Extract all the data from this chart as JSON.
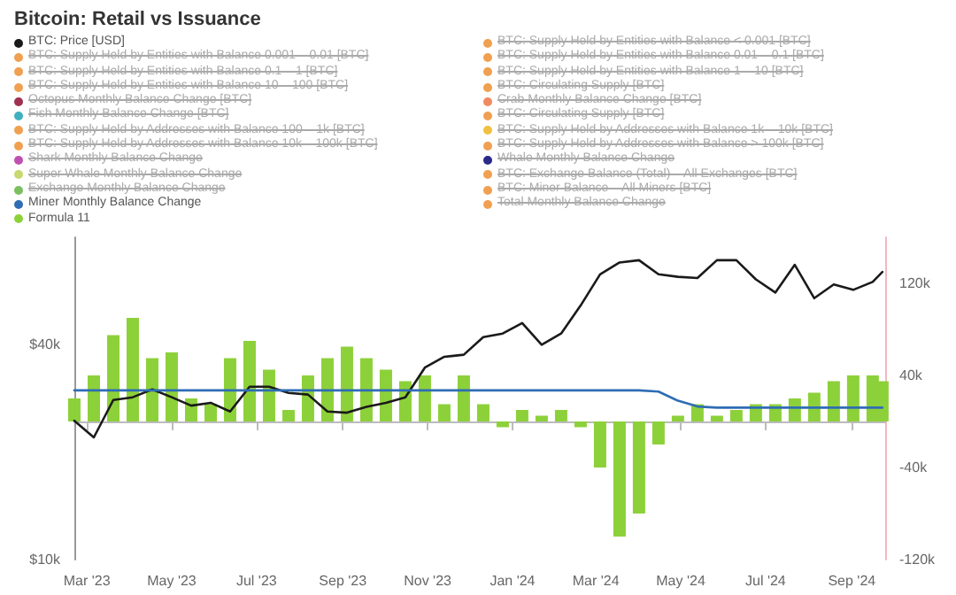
{
  "chart_data": {
    "type": "line",
    "title": "Bitcoin: Retail vs Issuance",
    "legend": "top",
    "marker": "none",
    "line_style": "solid",
    "grid": false,
    "x": [
      "2023-02-20",
      "2023-03-06",
      "2023-03-20",
      "2023-04-03",
      "2023-04-17",
      "2023-05-01",
      "2023-05-15",
      "2023-05-29",
      "2023-06-12",
      "2023-06-26",
      "2023-07-10",
      "2023-07-24",
      "2023-08-07",
      "2023-08-21",
      "2023-09-04",
      "2023-09-18",
      "2023-10-02",
      "2023-10-16",
      "2023-10-30",
      "2023-11-13",
      "2023-11-27",
      "2023-12-11",
      "2023-12-25",
      "2024-01-08",
      "2024-01-22",
      "2024-02-05",
      "2024-02-19",
      "2024-03-04",
      "2024-03-18",
      "2024-04-01",
      "2024-04-15",
      "2024-04-29",
      "2024-05-13",
      "2024-05-27",
      "2024-06-10",
      "2024-06-24",
      "2024-07-08",
      "2024-07-22",
      "2024-08-05",
      "2024-08-19",
      "2024-09-02",
      "2024-09-16",
      "2024-09-23"
    ],
    "xlim": [
      "2023-02-20",
      "2024-09-25"
    ],
    "xticks": [
      {
        "value": "2023-03-01",
        "label": "Mar '23"
      },
      {
        "value": "2023-05-01",
        "label": "May '23"
      },
      {
        "value": "2023-07-01",
        "label": "Jul '23"
      },
      {
        "value": "2023-09-01",
        "label": "Sep '23"
      },
      {
        "value": "2023-11-01",
        "label": "Nov '23"
      },
      {
        "value": "2024-01-01",
        "label": "Jan '24"
      },
      {
        "value": "2024-03-01",
        "label": "Mar '24"
      },
      {
        "value": "2024-05-01",
        "label": "May '24"
      },
      {
        "value": "2024-07-01",
        "label": "Jul '24"
      },
      {
        "value": "2024-09-01",
        "label": "Sep '24"
      }
    ],
    "log": "y",
    "ylim": [
      10000,
      80000
    ],
    "yticks": [
      {
        "value": 10000,
        "label": "$10k"
      },
      {
        "value": 40000,
        "label": "$40k"
      }
    ],
    "y2lim": [
      -120000,
      160000
    ],
    "y2ticks": [
      {
        "value": -120000,
        "label": "-120k"
      },
      {
        "value": -40000,
        "label": "-40k"
      },
      {
        "value": 40000,
        "label": "40k"
      },
      {
        "value": 120000,
        "label": "120k"
      }
    ],
    "series": [
      {
        "name": "BTC: Price [USD]",
        "color": "#1a1a1a",
        "values": [
          24500,
          22000,
          28000,
          28500,
          30000,
          28500,
          27000,
          27500,
          26000,
          30500,
          30500,
          29300,
          29000,
          26000,
          25800,
          26800,
          27500,
          28500,
          34500,
          37000,
          37500,
          42000,
          43000,
          46000,
          40000,
          43000,
          51500,
          63000,
          68000,
          69000,
          63000,
          62000,
          61500,
          69000,
          69000,
          61000,
          56000,
          67000,
          54000,
          59000,
          57000,
          60000,
          64000
        ]
      },
      {
        "name": "BTC: Supply Held by Entities with Balance < 0.001 [BTC]",
        "color": "#f0a050",
        "values": [
          null,
          null,
          null,
          null,
          null,
          null,
          null,
          null,
          null,
          null,
          null,
          null,
          null,
          null,
          null,
          null,
          null,
          null,
          null,
          null,
          null,
          null,
          null,
          null,
          null,
          null,
          null,
          null,
          null,
          null,
          null,
          null,
          null,
          null,
          null,
          null,
          null,
          null,
          null,
          null,
          null,
          null,
          null
        ]
      },
      {
        "name": "BTC: Supply Held by Entities with Balance 0.001 – 0.01 [BTC]",
        "color": "#f0a050",
        "values": [
          null,
          null,
          null,
          null,
          null,
          null,
          null,
          null,
          null,
          null,
          null,
          null,
          null,
          null,
          null,
          null,
          null,
          null,
          null,
          null,
          null,
          null,
          null,
          null,
          null,
          null,
          null,
          null,
          null,
          null,
          null,
          null,
          null,
          null,
          null,
          null,
          null,
          null,
          null,
          null,
          null,
          null,
          null
        ]
      },
      {
        "name": "BTC: Supply Held by Entities with Balance 0.01 – 0.1 [BTC]",
        "color": "#f0a050",
        "values": [
          null,
          null,
          null,
          null,
          null,
          null,
          null,
          null,
          null,
          null,
          null,
          null,
          null,
          null,
          null,
          null,
          null,
          null,
          null,
          null,
          null,
          null,
          null,
          null,
          null,
          null,
          null,
          null,
          null,
          null,
          null,
          null,
          null,
          null,
          null,
          null,
          null,
          null,
          null,
          null,
          null,
          null,
          null
        ]
      },
      {
        "name": "BTC: Supply Held by Entities with Balance 0.1 – 1 [BTC]",
        "color": "#f0a050",
        "values": [
          null,
          null,
          null,
          null,
          null,
          null,
          null,
          null,
          null,
          null,
          null,
          null,
          null,
          null,
          null,
          null,
          null,
          null,
          null,
          null,
          null,
          null,
          null,
          null,
          null,
          null,
          null,
          null,
          null,
          null,
          null,
          null,
          null,
          null,
          null,
          null,
          null,
          null,
          null,
          null,
          null,
          null,
          null
        ]
      },
      {
        "name": "BTC: Supply Held by Entities with Balance 1 – 10 [BTC]",
        "color": "#f0a050",
        "values": [
          null,
          null,
          null,
          null,
          null,
          null,
          null,
          null,
          null,
          null,
          null,
          null,
          null,
          null,
          null,
          null,
          null,
          null,
          null,
          null,
          null,
          null,
          null,
          null,
          null,
          null,
          null,
          null,
          null,
          null,
          null,
          null,
          null,
          null,
          null,
          null,
          null,
          null,
          null,
          null,
          null,
          null,
          null
        ]
      },
      {
        "name": "BTC: Supply Held by Entities with Balance 10 – 100 [BTC]",
        "color": "#f0a050",
        "values": [
          null,
          null,
          null,
          null,
          null,
          null,
          null,
          null,
          null,
          null,
          null,
          null,
          null,
          null,
          null,
          null,
          null,
          null,
          null,
          null,
          null,
          null,
          null,
          null,
          null,
          null,
          null,
          null,
          null,
          null,
          null,
          null,
          null,
          null,
          null,
          null,
          null,
          null,
          null,
          null,
          null,
          null,
          null
        ]
      },
      {
        "name": "BTC: Circulating Supply [BTC]",
        "color": "#f0a050",
        "values": [
          null,
          null,
          null,
          null,
          null,
          null,
          null,
          null,
          null,
          null,
          null,
          null,
          null,
          null,
          null,
          null,
          null,
          null,
          null,
          null,
          null,
          null,
          null,
          null,
          null,
          null,
          null,
          null,
          null,
          null,
          null,
          null,
          null,
          null,
          null,
          null,
          null,
          null,
          null,
          null,
          null,
          null,
          null
        ]
      },
      {
        "name": "Octopus Monthly Balance Change [BTC]",
        "color": "#a03050",
        "values": [
          null,
          null,
          null,
          null,
          null,
          null,
          null,
          null,
          null,
          null,
          null,
          null,
          null,
          null,
          null,
          null,
          null,
          null,
          null,
          null,
          null,
          null,
          null,
          null,
          null,
          null,
          null,
          null,
          null,
          null,
          null,
          null,
          null,
          null,
          null,
          null,
          null,
          null,
          null,
          null,
          null,
          null,
          null
        ]
      },
      {
        "name": "Crab Monthly Balance Change [BTC]",
        "color": "#f08a60",
        "values": [
          null,
          null,
          null,
          null,
          null,
          null,
          null,
          null,
          null,
          null,
          null,
          null,
          null,
          null,
          null,
          null,
          null,
          null,
          null,
          null,
          null,
          null,
          null,
          null,
          null,
          null,
          null,
          null,
          null,
          null,
          null,
          null,
          null,
          null,
          null,
          null,
          null,
          null,
          null,
          null,
          null,
          null,
          null
        ]
      },
      {
        "name": "Fish Monthly Balance Change [BTC]",
        "color": "#40b0c0",
        "values": [
          null,
          null,
          null,
          null,
          null,
          null,
          null,
          null,
          null,
          null,
          null,
          null,
          null,
          null,
          null,
          null,
          null,
          null,
          null,
          null,
          null,
          null,
          null,
          null,
          null,
          null,
          null,
          null,
          null,
          null,
          null,
          null,
          null,
          null,
          null,
          null,
          null,
          null,
          null,
          null,
          null,
          null,
          null
        ]
      },
      {
        "name": "BTC: Circulating Supply [BTC]",
        "color": "#f0a050",
        "values": [
          null,
          null,
          null,
          null,
          null,
          null,
          null,
          null,
          null,
          null,
          null,
          null,
          null,
          null,
          null,
          null,
          null,
          null,
          null,
          null,
          null,
          null,
          null,
          null,
          null,
          null,
          null,
          null,
          null,
          null,
          null,
          null,
          null,
          null,
          null,
          null,
          null,
          null,
          null,
          null,
          null,
          null,
          null
        ]
      },
      {
        "name": "BTC: Supply Held by Addresses with Balance 100 – 1k [BTC]",
        "color": "#f0a050",
        "values": [
          null,
          null,
          null,
          null,
          null,
          null,
          null,
          null,
          null,
          null,
          null,
          null,
          null,
          null,
          null,
          null,
          null,
          null,
          null,
          null,
          null,
          null,
          null,
          null,
          null,
          null,
          null,
          null,
          null,
          null,
          null,
          null,
          null,
          null,
          null,
          null,
          null,
          null,
          null,
          null,
          null,
          null,
          null
        ]
      },
      {
        "name": "BTC: Supply Held by Addresses with Balance 1k – 10k [BTC]",
        "color": "#f0c040",
        "values": [
          null,
          null,
          null,
          null,
          null,
          null,
          null,
          null,
          null,
          null,
          null,
          null,
          null,
          null,
          null,
          null,
          null,
          null,
          null,
          null,
          null,
          null,
          null,
          null,
          null,
          null,
          null,
          null,
          null,
          null,
          null,
          null,
          null,
          null,
          null,
          null,
          null,
          null,
          null,
          null,
          null,
          null,
          null
        ]
      },
      {
        "name": "BTC: Supply Held by Addresses with Balance 10k – 100k [BTC]",
        "color": "#f0a050",
        "values": [
          null,
          null,
          null,
          null,
          null,
          null,
          null,
          null,
          null,
          null,
          null,
          null,
          null,
          null,
          null,
          null,
          null,
          null,
          null,
          null,
          null,
          null,
          null,
          null,
          null,
          null,
          null,
          null,
          null,
          null,
          null,
          null,
          null,
          null,
          null,
          null,
          null,
          null,
          null,
          null,
          null,
          null,
          null
        ]
      },
      {
        "name": "BTC: Supply Held by Addresses with Balance > 100k [BTC]",
        "color": "#f0a050",
        "values": [
          null,
          null,
          null,
          null,
          null,
          null,
          null,
          null,
          null,
          null,
          null,
          null,
          null,
          null,
          null,
          null,
          null,
          null,
          null,
          null,
          null,
          null,
          null,
          null,
          null,
          null,
          null,
          null,
          null,
          null,
          null,
          null,
          null,
          null,
          null,
          null,
          null,
          null,
          null,
          null,
          null,
          null,
          null
        ]
      },
      {
        "name": "Shark Monthly Balance Change",
        "color": "#c050b0",
        "values": [
          null,
          null,
          null,
          null,
          null,
          null,
          null,
          null,
          null,
          null,
          null,
          null,
          null,
          null,
          null,
          null,
          null,
          null,
          null,
          null,
          null,
          null,
          null,
          null,
          null,
          null,
          null,
          null,
          null,
          null,
          null,
          null,
          null,
          null,
          null,
          null,
          null,
          null,
          null,
          null,
          null,
          null,
          null
        ]
      },
      {
        "name": "Whale Monthly Balance Change",
        "color": "#2a2a8a",
        "values": [
          null,
          null,
          null,
          null,
          null,
          null,
          null,
          null,
          null,
          null,
          null,
          null,
          null,
          null,
          null,
          null,
          null,
          null,
          null,
          null,
          null,
          null,
          null,
          null,
          null,
          null,
          null,
          null,
          null,
          null,
          null,
          null,
          null,
          null,
          null,
          null,
          null,
          null,
          null,
          null,
          null,
          null,
          null
        ]
      },
      {
        "name": "Super Whale Monthly Balance Change",
        "color": "#c8d870",
        "values": [
          null,
          null,
          null,
          null,
          null,
          null,
          null,
          null,
          null,
          null,
          null,
          null,
          null,
          null,
          null,
          null,
          null,
          null,
          null,
          null,
          null,
          null,
          null,
          null,
          null,
          null,
          null,
          null,
          null,
          null,
          null,
          null,
          null,
          null,
          null,
          null,
          null,
          null,
          null,
          null,
          null,
          null,
          null
        ]
      },
      {
        "name": "BTC: Exchange Balance (Total) – All Exchanges [BTC]",
        "color": "#f0a050",
        "values": [
          null,
          null,
          null,
          null,
          null,
          null,
          null,
          null,
          null,
          null,
          null,
          null,
          null,
          null,
          null,
          null,
          null,
          null,
          null,
          null,
          null,
          null,
          null,
          null,
          null,
          null,
          null,
          null,
          null,
          null,
          null,
          null,
          null,
          null,
          null,
          null,
          null,
          null,
          null,
          null,
          null,
          null,
          null
        ]
      },
      {
        "name": "Exchange Monthly Balance Change",
        "color": "#7ac060",
        "values": [
          null,
          null,
          null,
          null,
          null,
          null,
          null,
          null,
          null,
          null,
          null,
          null,
          null,
          null,
          null,
          null,
          null,
          null,
          null,
          null,
          null,
          null,
          null,
          null,
          null,
          null,
          null,
          null,
          null,
          null,
          null,
          null,
          null,
          null,
          null,
          null,
          null,
          null,
          null,
          null,
          null,
          null,
          null
        ]
      },
      {
        "name": "BTC: Miner Balance – All Miners [BTC]",
        "color": "#f0a050",
        "values": [
          null,
          null,
          null,
          null,
          null,
          null,
          null,
          null,
          null,
          null,
          null,
          null,
          null,
          null,
          null,
          null,
          null,
          null,
          null,
          null,
          null,
          null,
          null,
          null,
          null,
          null,
          null,
          null,
          null,
          null,
          null,
          null,
          null,
          null,
          null,
          null,
          null,
          null,
          null,
          null,
          null,
          null,
          null
        ]
      },
      {
        "name": "Miner Monthly Balance Change",
        "color": "#2f6db5",
        "axis": "y2",
        "values": [
          27000,
          27000,
          27000,
          27000,
          27000,
          27000,
          27000,
          27000,
          27000,
          27000,
          27000,
          27000,
          27000,
          27000,
          27000,
          27000,
          27000,
          27000,
          27000,
          27000,
          27000,
          27000,
          27000,
          27000,
          27000,
          27000,
          27000,
          27000,
          27000,
          27000,
          26000,
          18000,
          13000,
          12000,
          12000,
          12000,
          12000,
          12000,
          12000,
          12000,
          12000,
          12000,
          12000
        ]
      },
      {
        "name": "Total Monthly Balance Change",
        "color": "#f0a050",
        "values": [
          null,
          null,
          null,
          null,
          null,
          null,
          null,
          null,
          null,
          null,
          null,
          null,
          null,
          null,
          null,
          null,
          null,
          null,
          null,
          null,
          null,
          null,
          null,
          null,
          null,
          null,
          null,
          null,
          null,
          null,
          null,
          null,
          null,
          null,
          null,
          null,
          null,
          null,
          null,
          null,
          null,
          null,
          null
        ]
      },
      {
        "name": "Formula 11",
        "color": "#8dd13a",
        "type": "bar",
        "axis": "y2",
        "values": [
          20000,
          40000,
          75000,
          90000,
          55000,
          60000,
          20000,
          15000,
          55000,
          70000,
          45000,
          10000,
          40000,
          55000,
          65000,
          55000,
          45000,
          35000,
          40000,
          15000,
          40000,
          15000,
          -5000,
          10000,
          5000,
          10000,
          -5000,
          -40000,
          -100000,
          -80000,
          -20000,
          5000,
          15000,
          5000,
          10000,
          15000,
          15000,
          20000,
          25000,
          35000,
          40000,
          40000,
          35000
        ]
      }
    ]
  }
}
